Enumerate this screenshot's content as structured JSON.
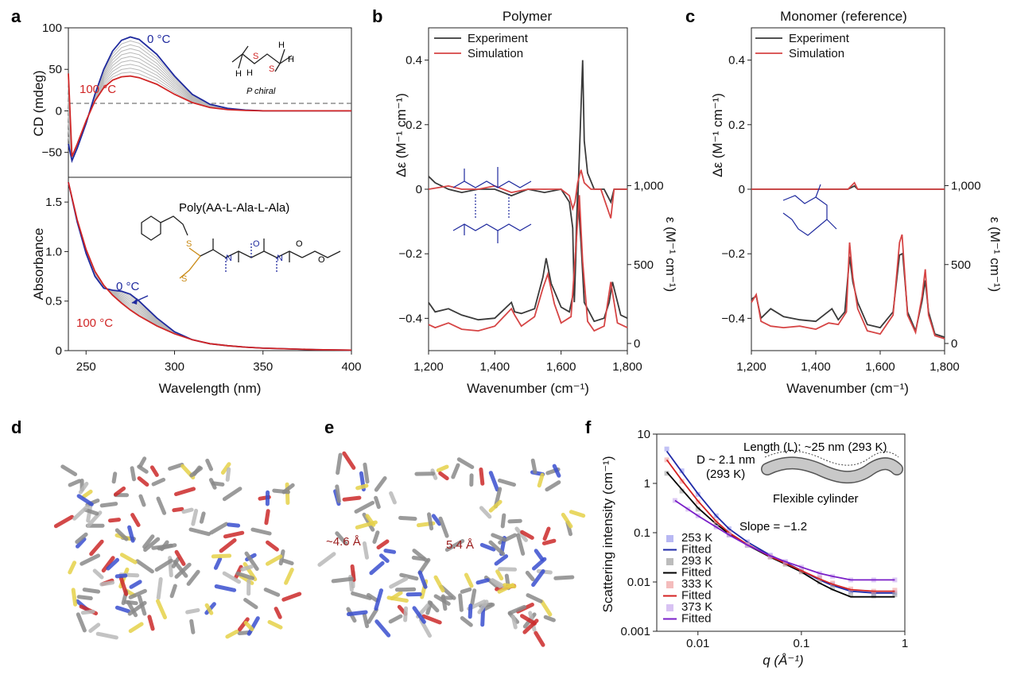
{
  "panels": {
    "a": {
      "label": "a",
      "top_ylabel": "CD (mdeg)",
      "bottom_ylabel": "Absorbance",
      "xlabel": "Wavelength (nm)",
      "annot_cold_top": "0 °C",
      "annot_hot_top": "100 °C",
      "annot_cold_bottom": "0 °C",
      "annot_hot_bottom": "100 °C",
      "struct_label": "P chiral",
      "polymer_name": "Poly(AA-L-Ala-L-Ala)",
      "colors": {
        "cold": "#1f2a9e",
        "hot": "#d02525",
        "intermediate": "#b8b8b8"
      }
    },
    "b": {
      "label": "b",
      "title": "Polymer",
      "legend": [
        "Experiment",
        "Simulation"
      ],
      "ylabel_left": "Δε (M⁻¹ cm⁻¹)",
      "ylabel_right": "ε (M⁻¹ cm⁻¹)",
      "xlabel": "Wavenumber (cm⁻¹)"
    },
    "c": {
      "label": "c",
      "title": "Monomer (reference)",
      "legend": [
        "Experiment",
        "Simulation"
      ],
      "ylabel_left": "Δε (M⁻¹ cm⁻¹)",
      "ylabel_right": "ε (M⁻¹ cm⁻¹)",
      "xlabel": "Wavenumber (cm⁻¹)"
    },
    "d": {
      "label": "d"
    },
    "e": {
      "label": "e",
      "dist1": "~4.6 Å",
      "dist2": "5.4 Å"
    },
    "f": {
      "label": "f",
      "ylabel": "Scattering intensity (cm⁻¹)",
      "xlabel": "q (Å⁻¹)",
      "length_label": "Length (L): ~25 nm (293 K)",
      "diam_label_1": "D ~ 2.1 nm",
      "diam_label_2": "(293 K)",
      "cyl_label": "Flexible cylinder",
      "slope_label": "Slope = −1.2",
      "legend": [
        "253 K",
        "Fitted",
        "293 K",
        "Fitted",
        "333 K",
        "Fitted",
        "373 K",
        "Fitted"
      ]
    }
  },
  "chart_data": [
    {
      "panel": "a-top",
      "type": "line",
      "ylabel": "CD (mdeg)",
      "xlim": [
        240,
        400
      ],
      "ylim": [
        -80,
        100
      ],
      "yticks": [
        -50,
        0,
        50,
        100
      ],
      "series": [
        {
          "name": "0 °C",
          "color": "#1f2a9e",
          "x": [
            240,
            242,
            245,
            250,
            255,
            260,
            265,
            270,
            275,
            280,
            290,
            300,
            310,
            320,
            330,
            340,
            350,
            360,
            380,
            400
          ],
          "y": [
            -40,
            -60,
            -45,
            -15,
            20,
            50,
            72,
            85,
            89,
            86,
            68,
            42,
            20,
            8,
            3,
            1,
            0,
            0,
            0,
            0
          ]
        },
        {
          "name": "100 °C",
          "color": "#d02525",
          "x": [
            240,
            242,
            245,
            250,
            255,
            260,
            265,
            270,
            275,
            280,
            290,
            300,
            310,
            320,
            330,
            340,
            350,
            360,
            380,
            400
          ],
          "y": [
            45,
            -55,
            -40,
            -12,
            12,
            28,
            37,
            41,
            42,
            40,
            32,
            20,
            10,
            4,
            1.5,
            0.5,
            0,
            0,
            0,
            0
          ]
        }
      ]
    },
    {
      "panel": "a-bottom",
      "type": "line",
      "xlabel": "Wavelength (nm)",
      "ylabel": "Absorbance",
      "xlim": [
        240,
        400
      ],
      "ylim": [
        0,
        1.75
      ],
      "xticks": [
        250,
        300,
        350,
        400
      ],
      "yticks": [
        0,
        0.5,
        1.0,
        1.5
      ],
      "series": [
        {
          "name": "0 °C",
          "color": "#1f2a9e",
          "x": [
            240,
            245,
            250,
            255,
            260,
            265,
            270,
            275,
            280,
            290,
            300,
            310,
            320,
            330,
            340,
            350,
            360,
            380,
            400
          ],
          "y": [
            1.7,
            1.3,
            0.98,
            0.75,
            0.63,
            0.61,
            0.6,
            0.57,
            0.5,
            0.33,
            0.19,
            0.11,
            0.07,
            0.05,
            0.035,
            0.025,
            0.02,
            0.01,
            0.005
          ]
        },
        {
          "name": "100 °C",
          "color": "#d02525",
          "x": [
            240,
            245,
            250,
            255,
            260,
            265,
            270,
            275,
            280,
            290,
            300,
            310,
            320,
            330,
            340,
            350,
            360,
            380,
            400
          ],
          "y": [
            1.7,
            1.32,
            1.02,
            0.8,
            0.66,
            0.56,
            0.48,
            0.41,
            0.35,
            0.25,
            0.17,
            0.11,
            0.07,
            0.05,
            0.035,
            0.025,
            0.02,
            0.01,
            0.005
          ]
        }
      ]
    },
    {
      "panel": "b",
      "type": "line",
      "title": "Polymer",
      "xlabel": "Wavenumber (cm⁻¹)",
      "ylabel": "Δε (M⁻¹ cm⁻¹)",
      "xlim": [
        1200,
        1800
      ],
      "ylim": [
        -0.5,
        0.5
      ],
      "xticks": [
        1200,
        1400,
        1600,
        1800
      ],
      "yticks": [
        -0.4,
        -0.2,
        0,
        0.2,
        0.4
      ],
      "right_axis": {
        "label": "ε (M⁻¹ cm⁻¹)",
        "ticks": [
          0,
          500,
          1000
        ]
      },
      "series": [
        {
          "name": "Experiment",
          "color": "#3a3a3a",
          "cd_x": [
            1200,
            1220,
            1260,
            1300,
            1350,
            1400,
            1450,
            1500,
            1550,
            1600,
            1625,
            1635,
            1640,
            1648,
            1655,
            1660,
            1665,
            1670,
            1680,
            1700,
            1730,
            1750,
            1760,
            1800
          ],
          "cd_y": [
            0.04,
            0.02,
            0.0,
            -0.01,
            0.0,
            0.0,
            -0.02,
            0.0,
            -0.01,
            0.0,
            -0.04,
            -0.12,
            -0.35,
            -0.1,
            0.1,
            0.25,
            0.4,
            0.15,
            0.05,
            0.0,
            0.0,
            -0.04,
            0.0,
            0.0
          ],
          "ir_x": [
            1200,
            1220,
            1260,
            1300,
            1350,
            1400,
            1450,
            1460,
            1480,
            1520,
            1545,
            1555,
            1570,
            1600,
            1625,
            1640,
            1650,
            1660,
            1670,
            1700,
            1730,
            1745,
            1755,
            1780,
            1800
          ],
          "ir_y": [
            260,
            200,
            220,
            180,
            150,
            160,
            260,
            200,
            190,
            220,
            420,
            540,
            380,
            230,
            200,
            350,
            960,
            640,
            260,
            140,
            160,
            260,
            390,
            180,
            160
          ]
        },
        {
          "name": "Simulation",
          "color": "#d64545",
          "cd_x": [
            1200,
            1260,
            1300,
            1350,
            1400,
            1450,
            1500,
            1550,
            1600,
            1625,
            1635,
            1642,
            1650,
            1660,
            1670,
            1690,
            1720,
            1750,
            1760,
            1800
          ],
          "cd_y": [
            0.0,
            0.01,
            0.0,
            0.0,
            0.01,
            -0.01,
            0.0,
            0.0,
            0.0,
            -0.02,
            -0.06,
            -0.04,
            0.02,
            0.06,
            0.02,
            0.0,
            0.0,
            -0.09,
            0.0,
            0.0
          ],
          "ir_x": [
            1200,
            1220,
            1260,
            1300,
            1350,
            1400,
            1450,
            1460,
            1480,
            1520,
            1545,
            1560,
            1580,
            1600,
            1630,
            1645,
            1655,
            1665,
            1680,
            1700,
            1730,
            1745,
            1750,
            1770,
            1800
          ],
          "ir_y": [
            120,
            100,
            130,
            90,
            80,
            110,
            220,
            180,
            110,
            170,
            350,
            440,
            250,
            130,
            170,
            620,
            940,
            520,
            140,
            80,
            110,
            320,
            390,
            130,
            100
          ]
        }
      ]
    },
    {
      "panel": "c",
      "type": "line",
      "title": "Monomer (reference)",
      "xlabel": "Wavenumber (cm⁻¹)",
      "ylabel": "Δε (M⁻¹ cm⁻¹)",
      "xlim": [
        1200,
        1800
      ],
      "ylim": [
        -0.5,
        0.5
      ],
      "xticks": [
        1200,
        1400,
        1600,
        1800
      ],
      "yticks": [
        -0.4,
        -0.2,
        0,
        0.2,
        0.4
      ],
      "right_axis": {
        "label": "ε (M⁻¹ cm⁻¹)",
        "ticks": [
          0,
          500,
          1000
        ]
      },
      "series": [
        {
          "name": "Experiment",
          "color": "#3a3a3a",
          "cd_x": [
            1200,
            1300,
            1400,
            1500,
            1520,
            1530,
            1600,
            1700,
            1800
          ],
          "cd_y": [
            0.0,
            0.0,
            0.0,
            0.0,
            0.01,
            0.0,
            0.0,
            0.0,
            0.0
          ],
          "ir_x": [
            1200,
            1215,
            1230,
            1260,
            1300,
            1350,
            1400,
            1450,
            1470,
            1490,
            1505,
            1515,
            1530,
            1560,
            1600,
            1640,
            1660,
            1670,
            1685,
            1710,
            1730,
            1740,
            1750,
            1770,
            1800
          ],
          "ir_y": [
            280,
            300,
            160,
            220,
            170,
            150,
            140,
            220,
            150,
            200,
            550,
            390,
            260,
            120,
            100,
            200,
            560,
            570,
            200,
            80,
            270,
            400,
            200,
            60,
            40
          ]
        },
        {
          "name": "Simulation",
          "color": "#d64545",
          "cd_x": [
            1200,
            1300,
            1400,
            1500,
            1520,
            1530,
            1600,
            1700,
            1800
          ],
          "cd_y": [
            0.0,
            0.0,
            0.0,
            0.0,
            0.02,
            0.0,
            0.0,
            0.0,
            0.0
          ],
          "ir_x": [
            1200,
            1215,
            1230,
            1260,
            1300,
            1350,
            1400,
            1440,
            1470,
            1495,
            1505,
            1515,
            1530,
            1560,
            1600,
            1640,
            1660,
            1668,
            1685,
            1710,
            1730,
            1740,
            1750,
            1770,
            1800
          ],
          "ir_y": [
            260,
            310,
            140,
            110,
            100,
            110,
            90,
            130,
            120,
            200,
            640,
            420,
            220,
            80,
            60,
            180,
            640,
            690,
            180,
            70,
            300,
            470,
            180,
            50,
            30
          ]
        }
      ]
    },
    {
      "panel": "f",
      "type": "scatter",
      "xlabel": "q (Å⁻¹)",
      "ylabel": "Scattering intensity (cm⁻¹)",
      "xscale": "log",
      "yscale": "log",
      "xlim": [
        0.004,
        1
      ],
      "ylim": [
        0.001,
        10
      ],
      "xticks": [
        0.01,
        0.1,
        1
      ],
      "yticks": [
        0.001,
        0.01,
        0.1,
        1,
        10
      ],
      "series": [
        {
          "name": "253 K",
          "color": "#9a9aee",
          "x": [
            0.005,
            0.007,
            0.01,
            0.015,
            0.02,
            0.03,
            0.05,
            0.07,
            0.1,
            0.15,
            0.2,
            0.3,
            0.5,
            0.8
          ],
          "y": [
            5.0,
            1.8,
            0.6,
            0.22,
            0.12,
            0.065,
            0.035,
            0.025,
            0.017,
            0.012,
            0.009,
            0.0065,
            0.0055,
            0.006
          ]
        },
        {
          "name": "Fitted",
          "color": "#1f2aa8",
          "x": [
            0.005,
            0.007,
            0.01,
            0.015,
            0.02,
            0.03,
            0.05,
            0.07,
            0.1,
            0.15,
            0.2,
            0.3,
            0.5,
            0.8
          ],
          "y": [
            4.5,
            1.7,
            0.62,
            0.22,
            0.12,
            0.065,
            0.035,
            0.025,
            0.017,
            0.011,
            0.0085,
            0.0065,
            0.006,
            0.006
          ]
        },
        {
          "name": "293 K",
          "color": "#a0a0a0",
          "x": [
            0.005,
            0.007,
            0.01,
            0.015,
            0.02,
            0.03,
            0.05,
            0.07,
            0.1,
            0.15,
            0.2,
            0.3,
            0.5,
            0.8
          ],
          "y": [
            1.6,
            0.7,
            0.3,
            0.14,
            0.09,
            0.055,
            0.032,
            0.023,
            0.016,
            0.01,
            0.0075,
            0.0055,
            0.0052,
            0.0055
          ]
        },
        {
          "name": "Fitted",
          "color": "#000000",
          "x": [
            0.005,
            0.007,
            0.01,
            0.015,
            0.02,
            0.03,
            0.05,
            0.07,
            0.1,
            0.15,
            0.2,
            0.3,
            0.5,
            0.8
          ],
          "y": [
            1.7,
            0.75,
            0.32,
            0.15,
            0.095,
            0.056,
            0.032,
            0.023,
            0.016,
            0.0095,
            0.007,
            0.005,
            0.005,
            0.005
          ]
        },
        {
          "name": "333 K",
          "color": "#f0a0a0",
          "x": [
            0.005,
            0.007,
            0.01,
            0.015,
            0.02,
            0.03,
            0.05,
            0.07,
            0.1,
            0.15,
            0.2,
            0.3,
            0.5,
            0.8
          ],
          "y": [
            3.0,
            1.1,
            0.42,
            0.17,
            0.1,
            0.058,
            0.033,
            0.024,
            0.017,
            0.012,
            0.0095,
            0.0072,
            0.0065,
            0.0068
          ]
        },
        {
          "name": "Fitted",
          "color": "#d42222",
          "x": [
            0.005,
            0.007,
            0.01,
            0.015,
            0.02,
            0.03,
            0.05,
            0.07,
            0.1,
            0.15,
            0.2,
            0.3,
            0.5,
            0.8
          ],
          "y": [
            3.0,
            1.15,
            0.44,
            0.17,
            0.1,
            0.058,
            0.033,
            0.024,
            0.017,
            0.0115,
            0.009,
            0.007,
            0.0065,
            0.0065
          ]
        },
        {
          "name": "373 K",
          "color": "#c8a8ee",
          "x": [
            0.006,
            0.008,
            0.01,
            0.015,
            0.02,
            0.03,
            0.05,
            0.07,
            0.1,
            0.15,
            0.2,
            0.3,
            0.5,
            0.8
          ],
          "y": [
            0.45,
            0.3,
            0.22,
            0.13,
            0.09,
            0.056,
            0.034,
            0.026,
            0.02,
            0.015,
            0.013,
            0.011,
            0.011,
            0.011
          ]
        },
        {
          "name": "Fitted",
          "color": "#7a1fc8",
          "x": [
            0.006,
            0.008,
            0.01,
            0.015,
            0.02,
            0.03,
            0.05,
            0.07,
            0.1,
            0.15,
            0.2,
            0.3,
            0.5,
            0.8
          ],
          "y": [
            0.45,
            0.3,
            0.22,
            0.13,
            0.09,
            0.056,
            0.034,
            0.026,
            0.02,
            0.015,
            0.013,
            0.011,
            0.011,
            0.011
          ]
        }
      ]
    }
  ]
}
